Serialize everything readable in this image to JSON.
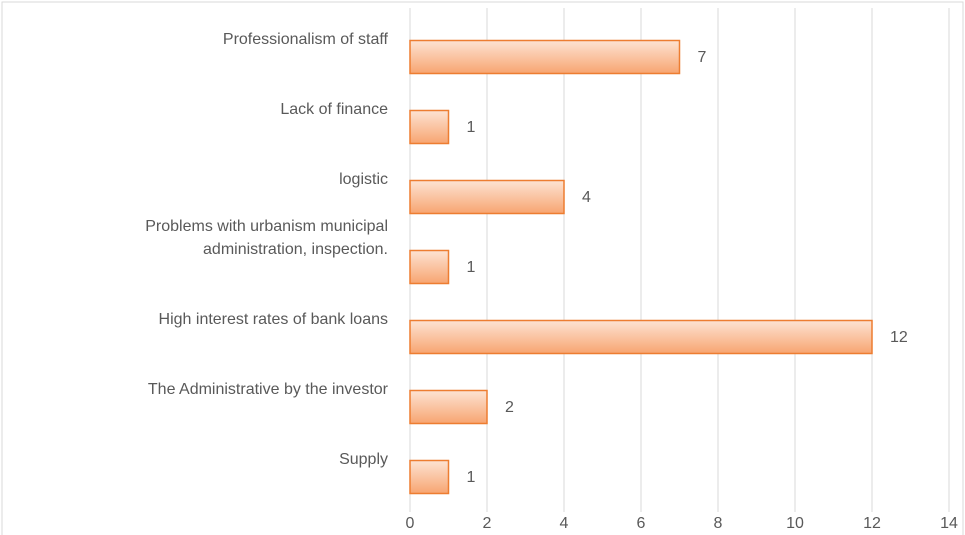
{
  "chart_data": {
    "type": "bar",
    "orientation": "horizontal",
    "categories": [
      "Professionalism of staff",
      "Lack of finance",
      "logistic",
      "Problems with urbanism municipal administration, inspection.",
      "High interest rates of bank loans",
      "The Administrative by the investor",
      "Supply"
    ],
    "values": [
      7,
      1,
      4,
      1,
      12,
      2,
      1
    ],
    "color": "#f7a571",
    "xlim": [
      0,
      14
    ],
    "xticks": [
      0,
      2,
      4,
      6,
      8,
      10,
      12,
      14
    ],
    "grid": true
  }
}
